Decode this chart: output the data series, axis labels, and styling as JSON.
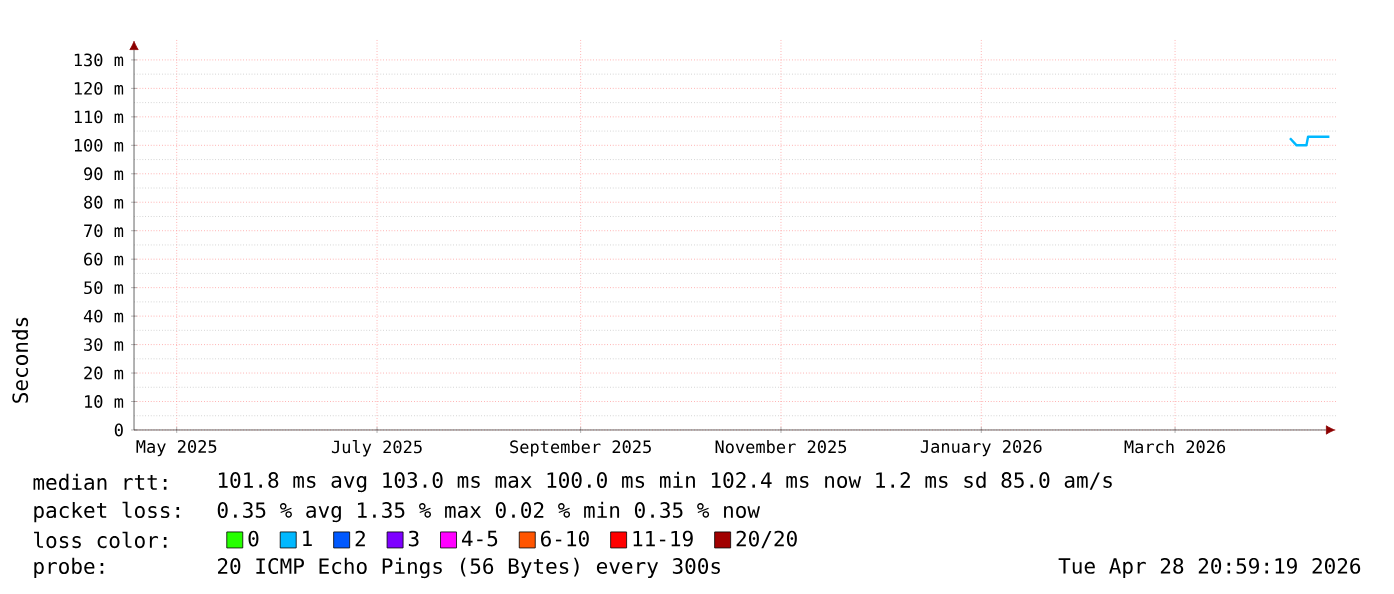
{
  "chart_data": {
    "type": "line",
    "ylabel": "Seconds",
    "xlim": [
      "2025-04-18",
      "2026-04-19"
    ],
    "xticks": [
      {
        "value": "2025-05-01",
        "label": "May 2025"
      },
      {
        "value": "2025-07-01",
        "label": "July 2025"
      },
      {
        "value": "2025-09-01",
        "label": "September 2025"
      },
      {
        "value": "2025-11-01",
        "label": "November 2025"
      },
      {
        "value": "2026-01-01",
        "label": "January 2026"
      },
      {
        "value": "2026-03-01",
        "label": "March 2026"
      }
    ],
    "ylim": [
      0,
      137
    ],
    "yticks": [
      0,
      {
        "value": 10,
        "label": "10 m"
      },
      {
        "value": 20,
        "label": "20 m"
      },
      {
        "value": 30,
        "label": "30 m"
      },
      {
        "value": 40,
        "label": "40 m"
      },
      {
        "value": 50,
        "label": "50 m"
      },
      {
        "value": 60,
        "label": "60 m"
      },
      {
        "value": 70,
        "label": "70 m"
      },
      {
        "value": 80,
        "label": "80 m"
      },
      {
        "value": 90,
        "label": "90 m"
      },
      {
        "value": 100,
        "label": "100 m"
      },
      {
        "value": 110,
        "label": "110 m"
      },
      {
        "value": 120,
        "label": "120 m"
      },
      {
        "value": 130,
        "label": "130 m"
      }
    ],
    "grid": true,
    "legend": "bottom",
    "legend_title": "loss color:",
    "series": [
      {
        "name": "0",
        "color": "#26ff00"
      },
      {
        "name": "1",
        "color": "#00b8ff",
        "x": [
          "2026-04-05",
          "2026-04-07",
          "2026-04-10",
          "2026-04-10T12:00",
          "2026-04-17"
        ],
        "values": [
          102.5,
          100.0,
          100.0,
          103.0,
          103.0
        ]
      },
      {
        "name": "2",
        "color": "#0059ff"
      },
      {
        "name": "3",
        "color": "#7e00ff"
      },
      {
        "name": "4-5",
        "color": "#ff00ff"
      },
      {
        "name": "6-10",
        "color": "#ff5500"
      },
      {
        "name": "11-19",
        "color": "#ff0000"
      },
      {
        "name": "20/20",
        "color": "#a10000"
      }
    ],
    "annotations": [
      "median rtt:",
      "101.8 ms avg  103.0 ms max  100.0 ms min  102.4 ms now  1.2 ms sd  85.0   am/s",
      "packet loss:",
      "0.35 % avg  1.35 % max  0.02 % min  0.35 % now",
      "probe:",
      "20 ICMP Echo Pings (56 Bytes) every 300s",
      "Tue Apr 28 20:59:19 2026"
    ]
  }
}
